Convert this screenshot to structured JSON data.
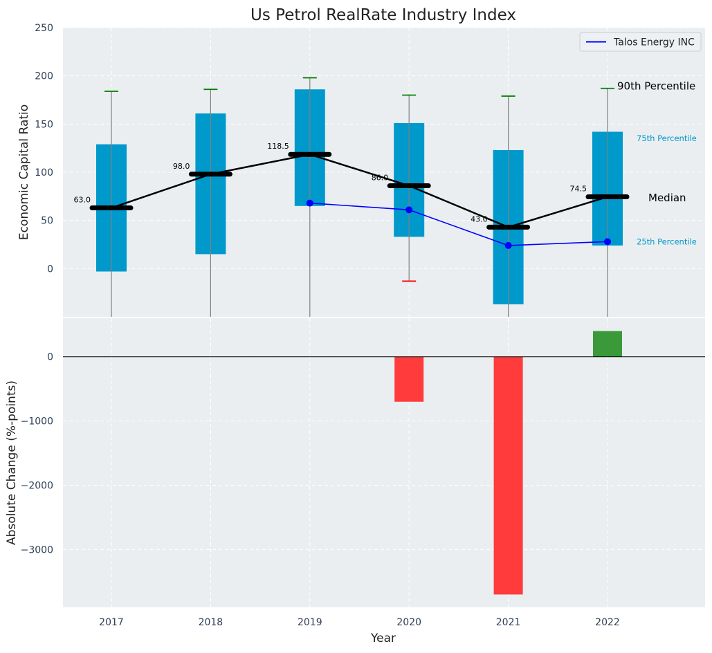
{
  "chart_data": [
    {
      "type": "boxplot",
      "title": "Us Petrol RealRate Industry Index",
      "ylabel": "Economic Capital Ratio",
      "ylim": [
        -50,
        250
      ],
      "yticks": [
        0,
        50,
        100,
        150,
        200,
        250
      ],
      "categories": [
        "2017",
        "2018",
        "2019",
        "2020",
        "2021",
        "2022"
      ],
      "grid": true,
      "legend": {
        "label": "Talos Energy INC",
        "position": "top-right"
      },
      "boxes": [
        {
          "year": "2017",
          "p25": -3,
          "p75": 129,
          "median": 63.0,
          "median_label": "63.0",
          "whisker_high": 184,
          "whisker_low": -50,
          "cap_high": 184,
          "cap_low": null
        },
        {
          "year": "2018",
          "p25": 15,
          "p75": 161,
          "median": 98.0,
          "median_label": "98.0",
          "whisker_high": 186,
          "whisker_low": -50,
          "cap_high": 186,
          "cap_low": null
        },
        {
          "year": "2019",
          "p25": 65,
          "p75": 186,
          "median": 118.5,
          "median_label": "118.5",
          "whisker_high": 198,
          "whisker_low": -50,
          "cap_high": 198,
          "cap_low": null
        },
        {
          "year": "2020",
          "p25": 33,
          "p75": 151,
          "median": 86.0,
          "median_label": "86.0",
          "whisker_high": 180,
          "whisker_low": -13,
          "cap_high": 180,
          "cap_low": -13
        },
        {
          "year": "2021",
          "p25": -37,
          "p75": 123,
          "median": 43.0,
          "median_label": "43.0",
          "whisker_high": 179,
          "whisker_low": -50,
          "cap_high": 179,
          "cap_low": null
        },
        {
          "year": "2022",
          "p25": 24,
          "p75": 142,
          "median": 74.5,
          "median_label": "74.5",
          "whisker_high": 187,
          "whisker_low": -50,
          "cap_high": 187,
          "cap_low": null
        }
      ],
      "company_series": {
        "name": "Talos Energy INC",
        "x": [
          "2019",
          "2020",
          "2021",
          "2022"
        ],
        "values": [
          68,
          61,
          24,
          28
        ]
      },
      "annotations": {
        "p90": "90th Percentile",
        "p75": "75th Percentile",
        "median": "Median",
        "p25": "25th Percentile"
      },
      "colors": {
        "box": "#0099cc",
        "median": "#000000",
        "company": "#0000ff",
        "cap_high": "#008000",
        "cap_low": "#ff0000",
        "whisker": "#808080",
        "plot_bg": "#eaeef0",
        "axis_text": "#2e4057"
      }
    },
    {
      "type": "bar",
      "xlabel": "Year",
      "ylabel": "Absolute Change (%-points)",
      "ylim": [
        -3900,
        600
      ],
      "yticks": [
        -3000,
        -2000,
        -1000,
        0
      ],
      "ytick_labels": [
        "−3000",
        "−2000",
        "−1000",
        "0"
      ],
      "categories": [
        "2017",
        "2018",
        "2019",
        "2020",
        "2021",
        "2022"
      ],
      "values": [
        0,
        0,
        0,
        -700,
        -3700,
        400
      ],
      "colors": {
        "negative": "#ff3b3b",
        "positive": "#3a9a3a"
      }
    }
  ]
}
